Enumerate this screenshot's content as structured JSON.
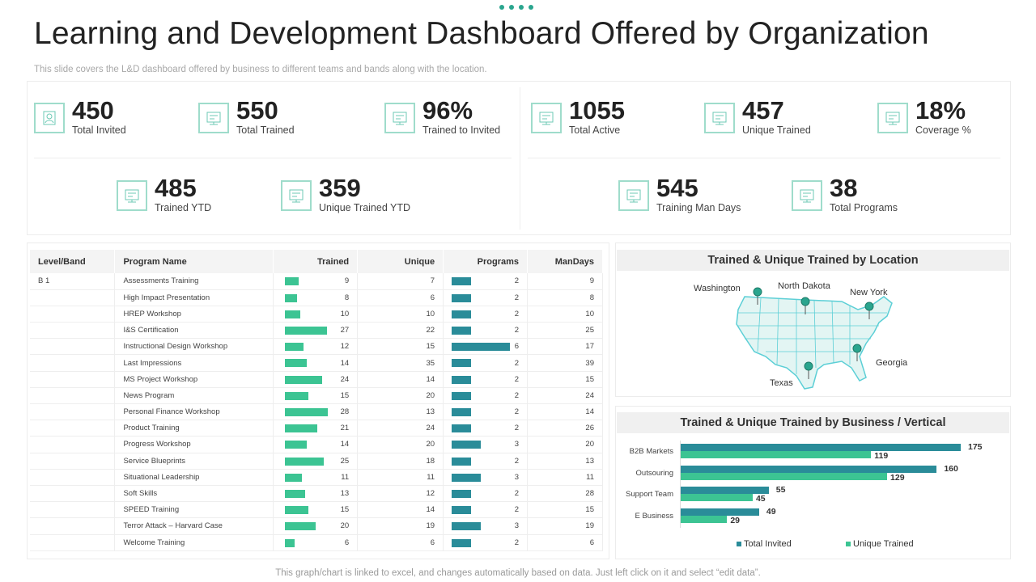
{
  "header": {
    "title": "Learning and Development Dashboard Offered by Organization",
    "subtitle": "This slide covers the L&D dashboard offered by business to different teams and bands along with the location."
  },
  "kpis": [
    {
      "value": "450",
      "label": "Total  Invited",
      "icon": "user-add-icon"
    },
    {
      "value": "550",
      "label": "Total Trained",
      "icon": "presentation-icon"
    },
    {
      "value": "96%",
      "label": "Trained  to Invited",
      "icon": "team-board-icon"
    },
    {
      "value": "1055",
      "label": "Total Active",
      "icon": "monitor-icon"
    },
    {
      "value": "457",
      "label": "Unique Trained",
      "icon": "people-icon"
    },
    {
      "value": "18%",
      "label": "Coverage %",
      "icon": "screen-icon"
    },
    {
      "value": "485",
      "label": "Trained  YTD",
      "icon": "calendar-icon"
    },
    {
      "value": "359",
      "label": "Unique  Trained  YTD",
      "icon": "classroom-icon"
    },
    {
      "value": "545",
      "label": "Training Man Days",
      "icon": "calendar-icon"
    },
    {
      "value": "38",
      "label": "Total Programs",
      "icon": "gear-screen-icon"
    }
  ],
  "table": {
    "columns": [
      "Level/Band",
      "Program Name",
      "Trained",
      "Unique",
      "Programs",
      "ManDays"
    ],
    "rows": [
      [
        "B 1",
        "Assessments Training",
        9,
        7,
        2,
        9
      ],
      [
        "",
        "High Impact Presentation",
        8,
        6,
        2,
        8
      ],
      [
        "",
        "HREP Workshop",
        10,
        10,
        2,
        10
      ],
      [
        "",
        "I&S Certification",
        27,
        22,
        2,
        25
      ],
      [
        "",
        "Instructional Design Workshop",
        12,
        15,
        6,
        17
      ],
      [
        "",
        "Last Impressions",
        14,
        35,
        2,
        39
      ],
      [
        "",
        "MS  Project Workshop",
        24,
        14,
        2,
        15
      ],
      [
        "",
        "News Program",
        15,
        20,
        2,
        24
      ],
      [
        "",
        "Personal Finance Workshop",
        28,
        13,
        2,
        14
      ],
      [
        "",
        "Product Training",
        21,
        24,
        2,
        26
      ],
      [
        "",
        "Progress Workshop",
        14,
        20,
        3,
        20
      ],
      [
        "",
        "Service Blueprints",
        25,
        18,
        2,
        13
      ],
      [
        "",
        "Situational Leadership",
        11,
        11,
        3,
        11
      ],
      [
        "",
        "Soft Skills",
        13,
        12,
        2,
        28
      ],
      [
        "",
        "SPEED Training",
        15,
        14,
        2,
        15
      ],
      [
        "",
        "Terror Attack – Harvard Case",
        20,
        19,
        3,
        19
      ],
      [
        "",
        "Welcome Training",
        6,
        6,
        2,
        6
      ]
    ]
  },
  "map": {
    "title": "Trained & Unique Trained by Location",
    "locations": [
      "Washington",
      "North Dakota",
      "New York",
      "Georgia",
      "Texas"
    ]
  },
  "chart_data": {
    "type": "bar",
    "orientation": "horizontal",
    "title": "Trained & Unique Trained by Business / Vertical",
    "categories": [
      "B2B Markets",
      "Outsouring",
      "Support Team",
      "E Business"
    ],
    "series": [
      {
        "name": "Total Invited",
        "values": [
          175,
          160,
          55,
          49
        ],
        "color": "#2a8c99"
      },
      {
        "name": "Unique Trained",
        "values": [
          119,
          129,
          45,
          29
        ],
        "color": "#3cc493"
      }
    ],
    "legend": "bottom"
  },
  "colors": {
    "teal": "#2a8c99",
    "green": "#3cc493",
    "icon_border": "#9fdccb"
  },
  "footer": "This graph/chart is linked to excel,  and changes automatically based on data. Just left click on it and select “edit data”."
}
